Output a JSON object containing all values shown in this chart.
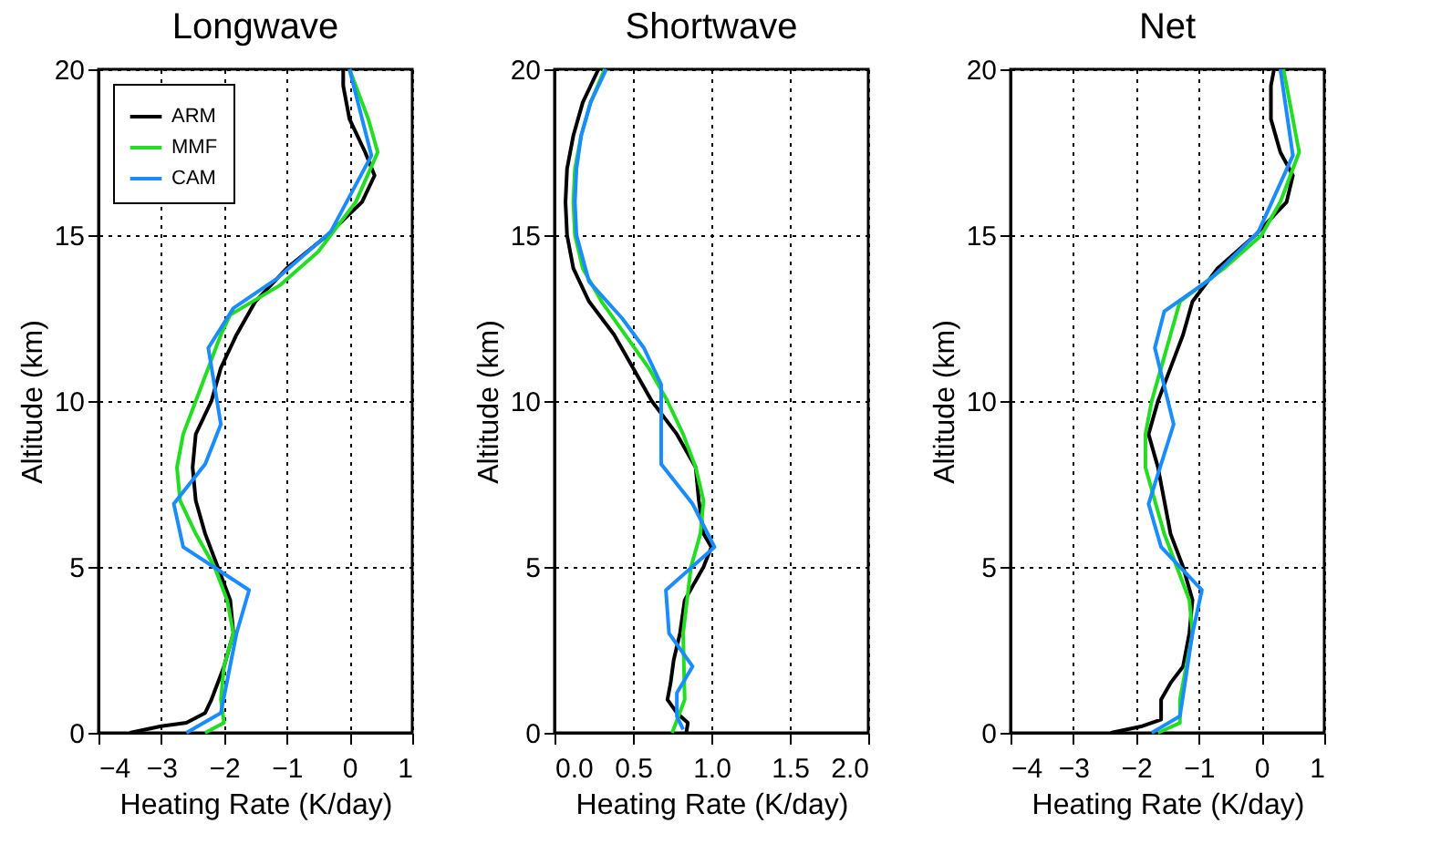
{
  "chart_data": [
    {
      "type": "line",
      "title": "Longwave",
      "xlabel": "Heating Rate (K/day)",
      "ylabel": "Altitude (km)",
      "xlim": [
        -4,
        1
      ],
      "xticks": [
        -4,
        -3,
        -2,
        -1,
        0,
        1
      ],
      "ylim": [
        0,
        20
      ],
      "yticks": [
        0,
        5,
        10,
        15,
        20
      ],
      "grid": true,
      "legend": "top left",
      "line_style": "solid",
      "series": [
        {
          "name": "ARM",
          "color": "#000000",
          "x": [
            -3.5,
            -3.0,
            -2.6,
            -2.3,
            -2.2,
            -2.0,
            -1.85,
            -1.9,
            -2.1,
            -2.3,
            -2.45,
            -2.5,
            -2.45,
            -2.2,
            -2.05,
            -1.8,
            -1.5,
            -1.0,
            -0.35,
            0.2,
            0.4,
            0.25,
            0.0,
            -0.1,
            -0.1
          ],
          "values": [
            0,
            0.2,
            0.3,
            0.6,
            1,
            2,
            3,
            4,
            5,
            6,
            7,
            8,
            9,
            10,
            11,
            12,
            13,
            14,
            15,
            16,
            16.8,
            17.5,
            18.5,
            19.5,
            20
          ]
        },
        {
          "name": "MMF",
          "color": "#22dd22",
          "x": [
            -2.3,
            -2.0,
            -2.05,
            -2.0,
            -1.85,
            -1.95,
            -2.15,
            -2.45,
            -2.7,
            -2.75,
            -2.65,
            -2.45,
            -2.25,
            -2.05,
            -1.9,
            -1.1,
            -0.5,
            -0.3,
            0.1,
            0.45,
            0.3,
            0.0
          ],
          "values": [
            0,
            0.3,
            1,
            2,
            3,
            4,
            5,
            6,
            7,
            8,
            9,
            10,
            11,
            12,
            12.6,
            13.5,
            14.5,
            15,
            16,
            17.5,
            18.5,
            20
          ]
        },
        {
          "name": "CAM",
          "color": "#1a8cff",
          "x": [
            -2.6,
            -2.05,
            -1.8,
            -1.6,
            -2.65,
            -2.8,
            -2.3,
            -2.05,
            -2.25,
            -1.85,
            -1.15,
            -0.3,
            0.35,
            0.0
          ],
          "values": [
            0,
            0.6,
            3,
            4.3,
            5.6,
            6.9,
            8.1,
            9.3,
            11.6,
            12.8,
            13.7,
            15.1,
            17.4,
            20
          ]
        }
      ]
    },
    {
      "type": "line",
      "title": "Shortwave",
      "xlabel": "Heating Rate (K/day)",
      "ylabel": "Altitude (km)",
      "xlim": [
        0,
        2
      ],
      "xticks": [
        {
          "value": 0,
          "label": "0.0"
        },
        0.5,
        {
          "value": 1,
          "label": "1.0"
        },
        1.5,
        {
          "value": 2,
          "label": "2.0"
        }
      ],
      "ylim": [
        0,
        20
      ],
      "yticks": [
        0,
        5,
        10,
        15,
        20
      ],
      "grid": true,
      "line_style": "solid",
      "series": [
        {
          "color": "#000000",
          "x": [
            0.84,
            0.85,
            0.78,
            0.72,
            0.74,
            0.76,
            0.8,
            0.83,
            0.95,
            1.0,
            0.95,
            0.92,
            0.9,
            0.78,
            0.62,
            0.5,
            0.38,
            0.22,
            0.12,
            0.08,
            0.07,
            0.08,
            0.12,
            0.18,
            0.28
          ],
          "values": [
            0,
            0.3,
            0.6,
            1,
            1.5,
            2.2,
            3,
            4,
            5,
            5.6,
            6,
            7,
            8,
            9,
            10,
            11,
            12,
            13,
            14,
            15,
            16,
            17,
            18,
            19,
            20
          ]
        },
        {
          "color": "#22dd22",
          "x": [
            0.75,
            0.83,
            0.82,
            0.87,
            0.93,
            0.95,
            0.9,
            0.82,
            0.72,
            0.6,
            0.45,
            0.3,
            0.18,
            0.13,
            0.12,
            0.13,
            0.17,
            0.23,
            0.32
          ],
          "values": [
            0,
            1,
            3,
            5,
            6,
            7,
            8,
            9,
            10,
            11,
            12,
            13,
            14,
            15,
            16,
            17,
            18,
            19,
            20
          ]
        },
        {
          "color": "#1a8cff",
          "x": [
            0.82,
            0.78,
            0.78,
            0.88,
            0.73,
            0.71,
            1.02,
            0.88,
            0.68,
            0.68,
            0.57,
            0.43,
            0.22,
            0.14,
            0.13,
            0.14,
            0.17,
            0.23,
            0.33
          ],
          "values": [
            0.1,
            0.5,
            1.2,
            2,
            3,
            4.3,
            5.6,
            6.9,
            8.1,
            10.5,
            11.6,
            12.5,
            13.6,
            15,
            16,
            17,
            18,
            19,
            20
          ]
        }
      ]
    },
    {
      "type": "line",
      "title": "Net",
      "xlabel": "Heating Rate (K/day)",
      "ylabel": "Altitude (km)",
      "xlim": [
        -4,
        1
      ],
      "xticks": [
        -4,
        -3,
        -2,
        -1,
        0,
        1
      ],
      "ylim": [
        0,
        20
      ],
      "yticks": [
        0,
        5,
        10,
        15,
        20
      ],
      "grid": true,
      "line_style": "solid",
      "series": [
        {
          "color": "#000000",
          "x": [
            -2.4,
            -1.9,
            -1.6,
            -1.6,
            -1.45,
            -1.25,
            -1.15,
            -1.1,
            -1.25,
            -1.45,
            -1.55,
            -1.65,
            -1.8,
            -1.65,
            -1.45,
            -1.25,
            -1.1,
            -0.7,
            -0.1,
            0.4,
            0.5,
            0.3,
            0.15,
            0.15,
            0.2
          ],
          "values": [
            0,
            0.2,
            0.4,
            1,
            1.5,
            2,
            3,
            4,
            5,
            6,
            7,
            8,
            9,
            10,
            11,
            12,
            13,
            14,
            15,
            16,
            16.8,
            17.5,
            18.5,
            19.5,
            20
          ]
        },
        {
          "color": "#22dd22",
          "x": [
            -1.65,
            -1.3,
            -1.3,
            -1.2,
            -1.1,
            -1.15,
            -1.35,
            -1.55,
            -1.7,
            -1.85,
            -1.85,
            -1.75,
            -1.6,
            -1.45,
            -1.3,
            -0.6,
            0.0,
            0.3,
            0.6,
            0.5,
            0.35
          ],
          "values": [
            0,
            0.3,
            1,
            2,
            3,
            4,
            5,
            6,
            7,
            8,
            9,
            10,
            11,
            12,
            13,
            14,
            15,
            16,
            17.5,
            18.5,
            20
          ]
        },
        {
          "color": "#1a8cff",
          "x": [
            -1.75,
            -1.3,
            -1.1,
            -0.95,
            -1.6,
            -1.8,
            -1.6,
            -1.4,
            -1.7,
            -1.55,
            -0.8,
            -0.05,
            0.5,
            0.3
          ],
          "values": [
            0,
            0.5,
            3,
            4.3,
            5.6,
            6.9,
            8.1,
            9.3,
            11.6,
            12.7,
            13.7,
            15.1,
            17.4,
            20
          ]
        }
      ]
    }
  ]
}
